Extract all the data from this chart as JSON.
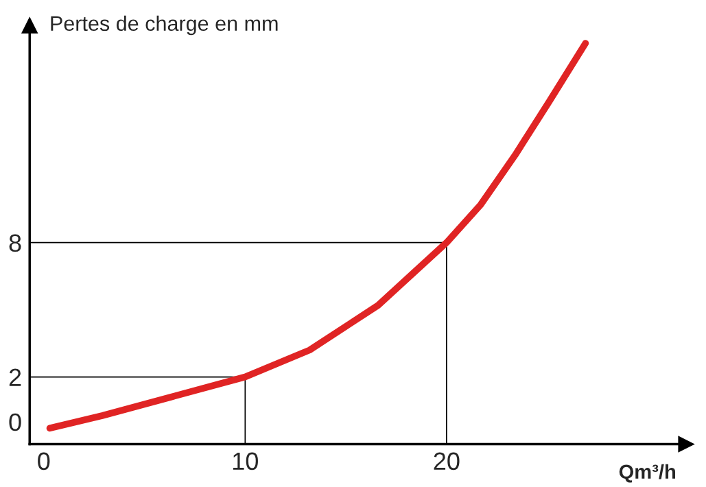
{
  "chart_data": {
    "type": "line",
    "xlabel": "Qm³/h",
    "ylabel": "Pertes de charge en mm",
    "x": [
      0.3,
      2.9,
      6.3,
      10,
      13.2,
      16.6,
      20,
      21.7,
      23.4,
      25.1,
      26.9
    ],
    "series": [
      {
        "color": "#e02424",
        "values": [
          -0.29,
          0.27,
          1.1,
          2,
          3.2,
          5.2,
          8,
          9.7,
          11.9,
          14.3,
          16.9
        ]
      }
    ],
    "xlim": [
      -0.7,
      31.9
    ],
    "ylim": [
      -1,
      17.7
    ],
    "xticks": [
      0,
      10,
      20
    ],
    "yticks": [
      0,
      2,
      8
    ],
    "ref_lines": [
      {
        "axis": "y",
        "value": 2,
        "color": "#000000"
      },
      {
        "axis": "y",
        "value": 8,
        "color": "#000000"
      },
      {
        "axis": "x",
        "value": 10,
        "color": "#000000"
      },
      {
        "axis": "x",
        "value": 20,
        "color": "#000000"
      }
    ],
    "grid": false,
    "legend": false,
    "marker": "none",
    "line_style": "solid"
  }
}
